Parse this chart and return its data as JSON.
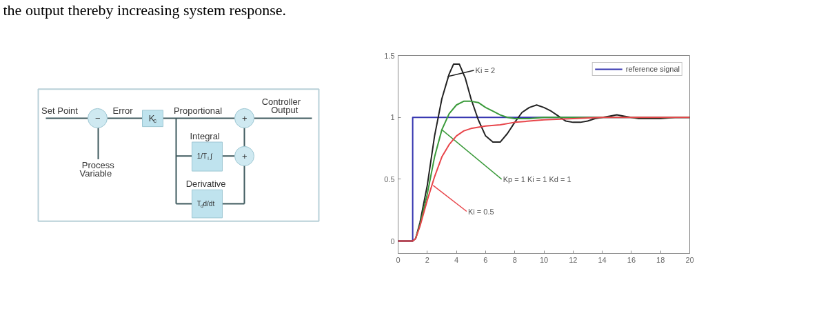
{
  "chart_data": [
    {
      "type": "other",
      "annotations": [
        "the output thereby increasing system response."
      ]
    },
    {
      "type": "other",
      "annotations": [
        "Set Point",
        "−",
        "Error",
        "K$_{c}$",
        "Proportional",
        "+",
        "Controller Output",
        "Integral",
        "1/T$_{i}$ ∫",
        "+",
        "Process Variable",
        "Derivative",
        "T$_{d}$d/dt"
      ]
    },
    {
      "type": "line",
      "xlim": [
        0,
        20
      ],
      "ylim": [
        -0.1,
        1.5
      ],
      "xticks": [
        0,
        2,
        4,
        6,
        8,
        10,
        12,
        14,
        16,
        18,
        20
      ],
      "yticks": [
        0,
        0.5,
        1,
        1.5
      ],
      "legend": "top right",
      "series": [
        {
          "name": "reference signal",
          "color": "#3535b0",
          "x": [
            0,
            1,
            1,
            20
          ],
          "values": [
            0,
            0,
            1,
            1
          ]
        },
        {
          "color": "#222222",
          "x": [
            0,
            1,
            1.2,
            1.5,
            2,
            2.5,
            3,
            3.5,
            3.8,
            4.2,
            4.6,
            5,
            5.5,
            6,
            6.5,
            7,
            7.5,
            8,
            8.5,
            9,
            9.5,
            10,
            10.5,
            11,
            11.5,
            12,
            12.5,
            13,
            13.5,
            14,
            14.5,
            15,
            15.5,
            16,
            16.5,
            17,
            18,
            19,
            20
          ],
          "values": [
            0,
            0,
            0.02,
            0.15,
            0.45,
            0.85,
            1.15,
            1.35,
            1.43,
            1.43,
            1.32,
            1.15,
            0.98,
            0.85,
            0.8,
            0.8,
            0.87,
            0.96,
            1.04,
            1.08,
            1.1,
            1.08,
            1.05,
            1.01,
            0.97,
            0.96,
            0.96,
            0.97,
            0.99,
            1.0,
            1.01,
            1.02,
            1.01,
            1.0,
            0.99,
            0.99,
            0.99,
            1.0,
            1.0
          ]
        },
        {
          "color": "#3a9a3a",
          "x": [
            1.2,
            1.5,
            2,
            2.5,
            3,
            3.5,
            4,
            4.5,
            5,
            5.5,
            6,
            6.5,
            7,
            7.5,
            8,
            9,
            10,
            20
          ],
          "values": [
            0.02,
            0.13,
            0.38,
            0.68,
            0.9,
            1.03,
            1.1,
            1.13,
            1.13,
            1.12,
            1.08,
            1.05,
            1.02,
            1.0,
            0.99,
            0.99,
            1.0,
            1.0
          ]
        },
        {
          "color": "#e8454a",
          "x": [
            0,
            1,
            1.2,
            1.5,
            2,
            2.5,
            3,
            3.5,
            4,
            4.5,
            5,
            6,
            7,
            8,
            9,
            10,
            12,
            14,
            20
          ],
          "values": [
            0,
            0,
            0.02,
            0.12,
            0.33,
            0.52,
            0.68,
            0.78,
            0.85,
            0.89,
            0.91,
            0.93,
            0.94,
            0.96,
            0.97,
            0.98,
            0.99,
            1.0,
            1.0
          ]
        }
      ],
      "annotations": [
        {
          "text": "Ki = 2",
          "x": 3.4,
          "y": 1.33
        },
        {
          "text": "Kp = 1  Ki = 1  Kd = 1",
          "x": 3.0,
          "y": 0.9
        },
        {
          "text": "Ki = 0.5",
          "x": 2.4,
          "y": 0.45
        }
      ]
    }
  ]
}
